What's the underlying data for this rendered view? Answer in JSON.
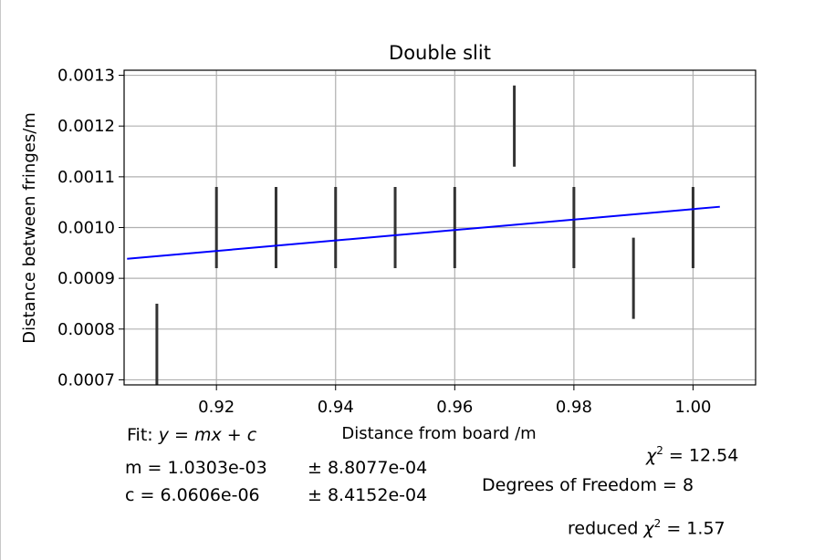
{
  "chart_data": {
    "type": "scatter",
    "title": "Double slit",
    "xlabel": "Distance from board /m",
    "ylabel": "Distance between fringes/m",
    "xlim": [
      0.9045,
      1.0105
    ],
    "ylim": [
      0.00069,
      0.00131
    ],
    "grid": true,
    "x_ticks": [
      0.92,
      0.94,
      0.96,
      0.98,
      1.0
    ],
    "x_tick_labels": [
      "0.92",
      "0.94",
      "0.96",
      "0.98",
      "1.00"
    ],
    "y_ticks": [
      0.0007,
      0.0008,
      0.0009,
      0.001,
      0.0011,
      0.0012,
      0.0013
    ],
    "y_tick_labels": [
      "0.0007",
      "0.0008",
      "0.0009",
      "0.0010",
      "0.0011",
      "0.0012",
      "0.0013"
    ],
    "errorbar_series": {
      "x": [
        0.91,
        0.92,
        0.93,
        0.94,
        0.95,
        0.96,
        0.97,
        0.98,
        0.99,
        1.0
      ],
      "y": [
        0.00077,
        0.001,
        0.001,
        0.001,
        0.001,
        0.001,
        0.0012,
        0.001,
        0.0009,
        0.001
      ],
      "yerr": [
        8e-05,
        8e-05,
        8e-05,
        8e-05,
        8e-05,
        8e-05,
        8e-05,
        8e-05,
        8e-05,
        8e-05
      ],
      "color": "#333333"
    },
    "fit_line": {
      "slope": 0.0010303,
      "intercept": 6.0606e-06,
      "x_range": [
        0.905,
        1.0045
      ],
      "color": "#0000ff"
    }
  },
  "annotations": {
    "fit_prefix": "Fit: ",
    "fit_formula": "y = mx + c",
    "m_line": "m = 1.0303e-03",
    "m_err": "± 8.8077e-04",
    "c_line": "c = 6.0606e-06",
    "c_err": "± 8.4152e-04",
    "chi2_symbol": "χ",
    "chi2_sup": "2",
    "chi2_value": " = 12.54",
    "dof": "Degrees of Freedom = 8",
    "reduced_prefix": "reduced ",
    "reduced_value": " = 1.57"
  }
}
